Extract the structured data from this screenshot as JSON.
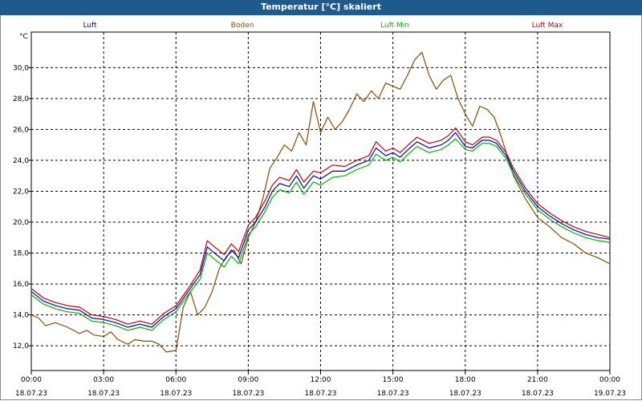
{
  "window": {
    "title": "Temperatur [°C] skaliert"
  },
  "chart_data": {
    "type": "line",
    "title": "Temperatur [°C] skaliert",
    "ylabel": "°C",
    "xlabel": "",
    "ylim": [
      10.4,
      32.3
    ],
    "xlim": [
      0,
      24
    ],
    "grid": true,
    "legend_placement": "top",
    "y_ticks": [
      "12,0",
      "14,0",
      "16,0",
      "18,0",
      "20,0",
      "22,0",
      "24,0",
      "26,0",
      "28,0",
      "30,0"
    ],
    "x_ticks": [
      {
        "time": "00:00",
        "date": "18.07.23"
      },
      {
        "time": "03:00",
        "date": "18.07.23"
      },
      {
        "time": "06:00",
        "date": "18.07.23"
      },
      {
        "time": "09:00",
        "date": "18.07.23"
      },
      {
        "time": "12:00",
        "date": "18.07.23"
      },
      {
        "time": "15:00",
        "date": "18.07.23"
      },
      {
        "time": "18:00",
        "date": "18.07.23"
      },
      {
        "time": "21:00",
        "date": "18.07.23"
      },
      {
        "time": "00:00",
        "date": "19.07.23"
      }
    ],
    "series": [
      {
        "name": "Luft",
        "color": "#0000c8",
        "points": [
          [
            0,
            15.5
          ],
          [
            0.5,
            14.9
          ],
          [
            1,
            14.6
          ],
          [
            1.5,
            14.4
          ],
          [
            2,
            14.3
          ],
          [
            2.5,
            13.8
          ],
          [
            3,
            13.7
          ],
          [
            3.5,
            13.5
          ],
          [
            4,
            13.2
          ],
          [
            4.5,
            13.4
          ],
          [
            5,
            13.2
          ],
          [
            5.5,
            13.9
          ],
          [
            6,
            14.4
          ],
          [
            6.5,
            15.5
          ],
          [
            7,
            16.6
          ],
          [
            7.3,
            18.4
          ],
          [
            7.6,
            18.0
          ],
          [
            8,
            17.5
          ],
          [
            8.3,
            18.2
          ],
          [
            8.6,
            17.7
          ],
          [
            9,
            19.5
          ],
          [
            9.3,
            20.0
          ],
          [
            9.7,
            21.0
          ],
          [
            10,
            22.0
          ],
          [
            10.3,
            22.5
          ],
          [
            10.7,
            22.3
          ],
          [
            11,
            23.0
          ],
          [
            11.3,
            22.2
          ],
          [
            11.7,
            23.0
          ],
          [
            12,
            22.8
          ],
          [
            12.5,
            23.3
          ],
          [
            13,
            23.3
          ],
          [
            13.5,
            23.7
          ],
          [
            14,
            24.0
          ],
          [
            14.3,
            24.8
          ],
          [
            14.7,
            24.3
          ],
          [
            15,
            24.5
          ],
          [
            15.3,
            24.2
          ],
          [
            15.7,
            24.8
          ],
          [
            16,
            25.2
          ],
          [
            16.5,
            24.8
          ],
          [
            17,
            25.0
          ],
          [
            17.3,
            25.3
          ],
          [
            17.6,
            25.8
          ],
          [
            18,
            24.9
          ],
          [
            18.3,
            24.8
          ],
          [
            18.7,
            25.3
          ],
          [
            19,
            25.3
          ],
          [
            19.3,
            25.1
          ],
          [
            19.7,
            24.3
          ],
          [
            20,
            23.3
          ],
          [
            20.5,
            22.0
          ],
          [
            21,
            21.0
          ],
          [
            21.5,
            20.4
          ],
          [
            22,
            19.9
          ],
          [
            22.5,
            19.5
          ],
          [
            23,
            19.2
          ],
          [
            23.5,
            19.0
          ],
          [
            24,
            18.9
          ]
        ]
      },
      {
        "name": "Boden",
        "color": "#8b4a00",
        "points": [
          [
            0,
            14.0
          ],
          [
            0.3,
            13.8
          ],
          [
            0.6,
            13.3
          ],
          [
            1,
            13.5
          ],
          [
            1.5,
            13.2
          ],
          [
            2,
            12.8
          ],
          [
            2.3,
            13.0
          ],
          [
            2.6,
            12.7
          ],
          [
            3,
            12.6
          ],
          [
            3.3,
            12.9
          ],
          [
            3.6,
            12.4
          ],
          [
            4,
            12.1
          ],
          [
            4.3,
            12.4
          ],
          [
            4.7,
            12.3
          ],
          [
            5,
            12.3
          ],
          [
            5.3,
            12.1
          ],
          [
            5.6,
            11.6
          ],
          [
            6,
            11.7
          ],
          [
            6.3,
            14.5
          ],
          [
            6.6,
            15.5
          ],
          [
            6.9,
            14.0
          ],
          [
            7.2,
            14.5
          ],
          [
            7.5,
            15.5
          ],
          [
            7.8,
            17.0
          ],
          [
            8.1,
            17.8
          ],
          [
            8.4,
            18.2
          ],
          [
            8.7,
            17.3
          ],
          [
            9,
            19.0
          ],
          [
            9.3,
            20.0
          ],
          [
            9.6,
            21.5
          ],
          [
            9.9,
            23.5
          ],
          [
            10.2,
            24.2
          ],
          [
            10.5,
            25.0
          ],
          [
            10.8,
            24.6
          ],
          [
            11.1,
            25.8
          ],
          [
            11.4,
            25.0
          ],
          [
            11.7,
            27.8
          ],
          [
            12,
            25.8
          ],
          [
            12.3,
            26.8
          ],
          [
            12.6,
            26.0
          ],
          [
            12.9,
            26.5
          ],
          [
            13.2,
            27.3
          ],
          [
            13.5,
            28.3
          ],
          [
            13.8,
            27.8
          ],
          [
            14.1,
            28.5
          ],
          [
            14.4,
            28.0
          ],
          [
            14.7,
            29.0
          ],
          [
            15,
            28.8
          ],
          [
            15.3,
            28.6
          ],
          [
            15.6,
            29.5
          ],
          [
            15.9,
            30.5
          ],
          [
            16.2,
            31.0
          ],
          [
            16.5,
            29.5
          ],
          [
            16.8,
            28.6
          ],
          [
            17.1,
            29.2
          ],
          [
            17.4,
            29.5
          ],
          [
            17.7,
            28.0
          ],
          [
            18,
            27.0
          ],
          [
            18.3,
            26.2
          ],
          [
            18.6,
            27.5
          ],
          [
            18.9,
            27.3
          ],
          [
            19.2,
            26.8
          ],
          [
            19.5,
            25.5
          ],
          [
            20,
            23.0
          ],
          [
            20.5,
            21.5
          ],
          [
            21,
            20.3
          ],
          [
            21.5,
            19.7
          ],
          [
            22,
            19.0
          ],
          [
            22.5,
            18.6
          ],
          [
            23,
            18.0
          ],
          [
            23.5,
            17.7
          ],
          [
            24,
            17.3
          ]
        ]
      },
      {
        "name": "Luft Min",
        "color": "#00b400",
        "points": [
          [
            0,
            15.3
          ],
          [
            0.5,
            14.7
          ],
          [
            1,
            14.4
          ],
          [
            1.5,
            14.2
          ],
          [
            2,
            14.1
          ],
          [
            2.5,
            13.6
          ],
          [
            3,
            13.5
          ],
          [
            3.5,
            13.3
          ],
          [
            4,
            13.0
          ],
          [
            4.5,
            13.2
          ],
          [
            5,
            13.0
          ],
          [
            5.5,
            13.7
          ],
          [
            6,
            14.2
          ],
          [
            6.5,
            15.3
          ],
          [
            7,
            16.3
          ],
          [
            7.3,
            18.0
          ],
          [
            7.6,
            17.6
          ],
          [
            8,
            17.1
          ],
          [
            8.3,
            17.8
          ],
          [
            8.6,
            17.3
          ],
          [
            9,
            19.2
          ],
          [
            9.3,
            19.7
          ],
          [
            9.7,
            20.7
          ],
          [
            10,
            21.6
          ],
          [
            10.3,
            22.1
          ],
          [
            10.7,
            21.9
          ],
          [
            11,
            22.6
          ],
          [
            11.3,
            21.8
          ],
          [
            11.7,
            22.6
          ],
          [
            12,
            22.4
          ],
          [
            12.5,
            22.9
          ],
          [
            13,
            23.0
          ],
          [
            13.5,
            23.4
          ],
          [
            14,
            23.7
          ],
          [
            14.3,
            24.4
          ],
          [
            14.7,
            24.0
          ],
          [
            15,
            24.2
          ],
          [
            15.3,
            23.9
          ],
          [
            15.7,
            24.5
          ],
          [
            16,
            24.9
          ],
          [
            16.5,
            24.5
          ],
          [
            17,
            24.7
          ],
          [
            17.3,
            25.0
          ],
          [
            17.6,
            25.4
          ],
          [
            18,
            24.7
          ],
          [
            18.3,
            24.6
          ],
          [
            18.7,
            25.1
          ],
          [
            19,
            25.1
          ],
          [
            19.3,
            24.9
          ],
          [
            19.7,
            24.1
          ],
          [
            20,
            23.1
          ],
          [
            20.5,
            21.8
          ],
          [
            21,
            20.8
          ],
          [
            21.5,
            20.2
          ],
          [
            22,
            19.7
          ],
          [
            22.5,
            19.3
          ],
          [
            23,
            19.0
          ],
          [
            23.5,
            18.8
          ],
          [
            24,
            18.7
          ]
        ]
      },
      {
        "name": "Luft Max",
        "color": "#c80000",
        "points": [
          [
            0,
            15.7
          ],
          [
            0.5,
            15.1
          ],
          [
            1,
            14.8
          ],
          [
            1.5,
            14.6
          ],
          [
            2,
            14.5
          ],
          [
            2.5,
            14.0
          ],
          [
            3,
            13.9
          ],
          [
            3.5,
            13.7
          ],
          [
            4,
            13.4
          ],
          [
            4.5,
            13.6
          ],
          [
            5,
            13.4
          ],
          [
            5.5,
            14.1
          ],
          [
            6,
            14.6
          ],
          [
            6.5,
            15.7
          ],
          [
            7,
            16.9
          ],
          [
            7.3,
            18.8
          ],
          [
            7.6,
            18.4
          ],
          [
            8,
            17.9
          ],
          [
            8.3,
            18.6
          ],
          [
            8.6,
            18.1
          ],
          [
            9,
            19.8
          ],
          [
            9.3,
            20.3
          ],
          [
            9.7,
            21.4
          ],
          [
            10,
            22.4
          ],
          [
            10.3,
            22.9
          ],
          [
            10.7,
            22.7
          ],
          [
            11,
            23.4
          ],
          [
            11.3,
            22.6
          ],
          [
            11.7,
            23.3
          ],
          [
            12,
            23.2
          ],
          [
            12.5,
            23.7
          ],
          [
            13,
            23.6
          ],
          [
            13.5,
            24.0
          ],
          [
            14,
            24.3
          ],
          [
            14.3,
            25.2
          ],
          [
            14.7,
            24.6
          ],
          [
            15,
            24.8
          ],
          [
            15.3,
            24.5
          ],
          [
            15.7,
            25.1
          ],
          [
            16,
            25.5
          ],
          [
            16.5,
            25.1
          ],
          [
            17,
            25.3
          ],
          [
            17.3,
            25.6
          ],
          [
            17.6,
            26.1
          ],
          [
            18,
            25.2
          ],
          [
            18.3,
            25.0
          ],
          [
            18.7,
            25.5
          ],
          [
            19,
            25.5
          ],
          [
            19.3,
            25.3
          ],
          [
            19.7,
            24.5
          ],
          [
            20,
            23.5
          ],
          [
            20.5,
            22.2
          ],
          [
            21,
            21.2
          ],
          [
            21.5,
            20.6
          ],
          [
            22,
            20.1
          ],
          [
            22.5,
            19.7
          ],
          [
            23,
            19.4
          ],
          [
            23.5,
            19.2
          ],
          [
            24,
            19.0
          ]
        ]
      }
    ]
  }
}
